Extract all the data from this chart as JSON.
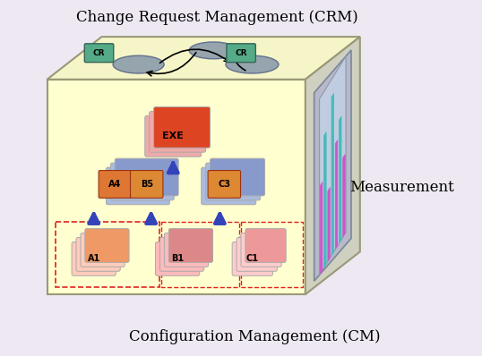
{
  "bg_color": "#ede8f2",
  "title_crm": "Change Request Management (CRM)",
  "title_cm": "Configuration Management (CM)",
  "title_measurement": "Measurement",
  "cube_front_color": "#ffffd0",
  "cube_top_color": "#f5f5c8",
  "cube_right_color": "#d0d0c0",
  "cube_edge_color": "#999977",
  "ellipse_color": "#8899aa",
  "cr_box_color": "#55aa88",
  "arrow_blue": "#3344bb",
  "bar_colors_alt": [
    "#cc55cc",
    "#44bbbb"
  ],
  "red_dash": "#dd2222"
}
